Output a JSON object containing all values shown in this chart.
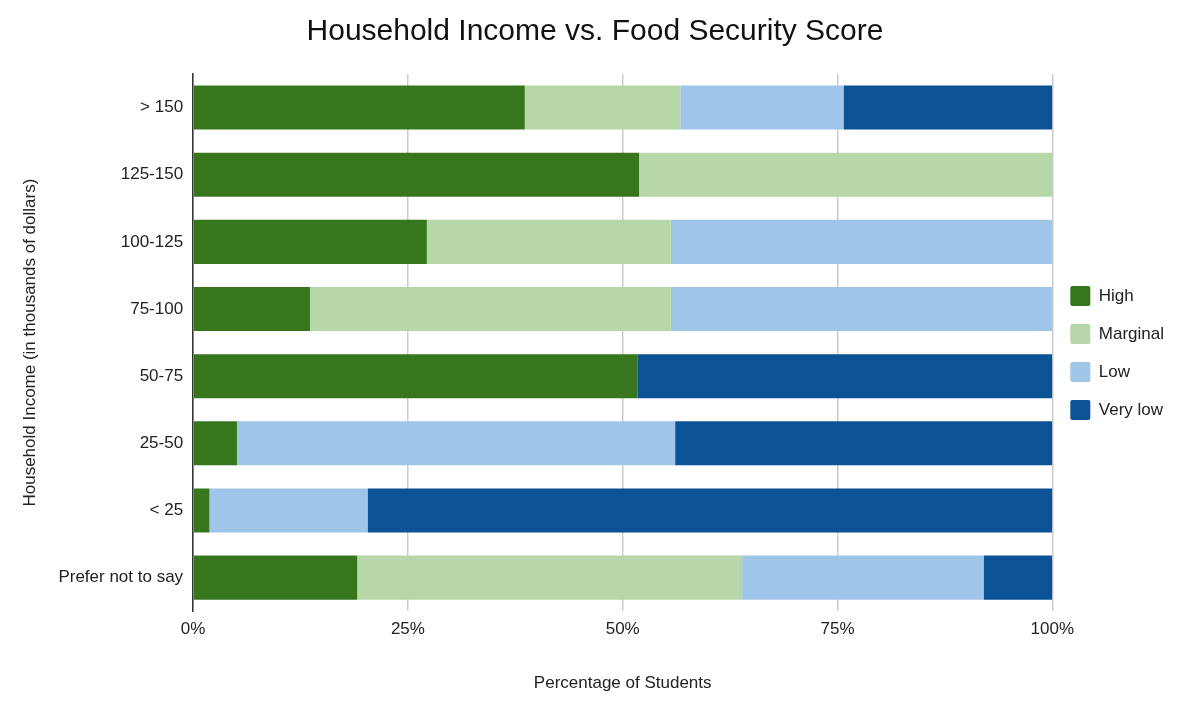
{
  "chart_data": {
    "type": "bar",
    "orientation": "horizontal",
    "stacked": true,
    "title": "Household Income vs. Food Security Score",
    "xlabel": "Percentage of Students",
    "ylabel": "Household Income (in thousands of dollars)",
    "categories": [
      "> 150",
      "125-150",
      "100-125",
      "75-100",
      "50-75",
      "25-50",
      "< 25",
      "Prefer not to say"
    ],
    "series": [
      {
        "name": "High",
        "color": "#38761d",
        "values": [
          38.6,
          51.9,
          27.2,
          13.6,
          51.7,
          5.1,
          1.9,
          19.1
        ]
      },
      {
        "name": "Marginal",
        "color": "#b6d7a8",
        "values": [
          18.1,
          48.1,
          28.4,
          42.0,
          0,
          0,
          0,
          44.8
        ]
      },
      {
        "name": "Low",
        "color": "#9fc5e8",
        "values": [
          19.0,
          0,
          44.4,
          44.4,
          0,
          51.0,
          18.4,
          28.1
        ]
      },
      {
        "name": "Very low",
        "color": "#0b5394",
        "values": [
          24.3,
          0,
          0,
          0,
          48.3,
          43.9,
          79.7,
          8.0
        ]
      }
    ],
    "xlim": [
      0,
      100
    ],
    "xticks": [
      {
        "value": 0,
        "label": "0%"
      },
      {
        "value": 25,
        "label": "25%"
      },
      {
        "value": 50,
        "label": "50%"
      },
      {
        "value": 75,
        "label": "75%"
      },
      {
        "value": 100,
        "label": "100%"
      }
    ],
    "grid": "x",
    "legend": "right"
  }
}
